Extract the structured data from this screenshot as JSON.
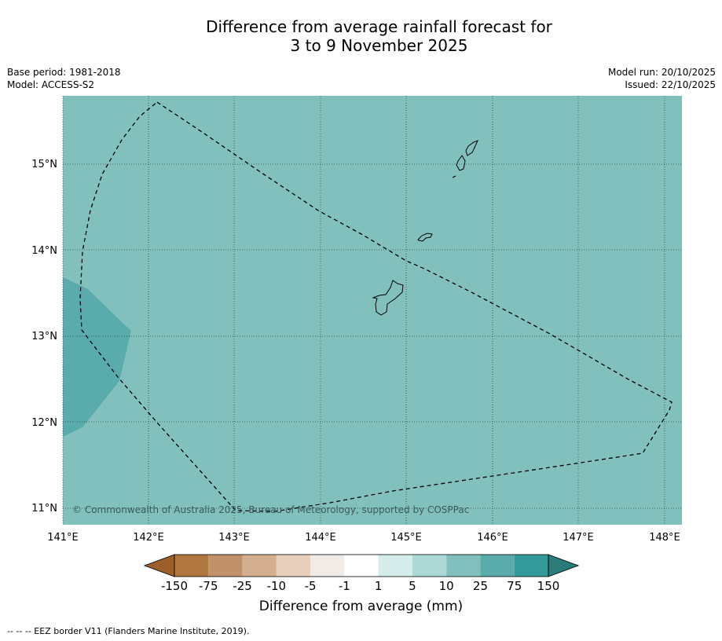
{
  "title": {
    "line1": "Difference from average rainfall forecast for",
    "line2": "3 to 9 November 2025"
  },
  "meta": {
    "base_period": "Base period: 1981-2018",
    "model": "Model: ACCESS-S2",
    "model_run": "Model run: 20/10/2025",
    "issued": "Issued: 22/10/2025"
  },
  "map": {
    "lon_labels": [
      "141°E",
      "142°E",
      "143°E",
      "144°E",
      "145°E",
      "146°E",
      "147°E",
      "148°E"
    ],
    "lat_labels": [
      "15°N",
      "14°N",
      "13°N",
      "12°N",
      "11°N"
    ],
    "copyright": "© Commonwealth of Australia 2025, Bureau of Meteorology, supported by COSPPac",
    "colors": {
      "background": "#82c0be",
      "wetter_patch": "#5aacac"
    },
    "features": [
      "eez-border",
      "guam",
      "rota",
      "tinian-saipan"
    ]
  },
  "legend": {
    "ticks": [
      "-150",
      "-75",
      "-25",
      "-10",
      "-5",
      "-1",
      "1",
      "5",
      "10",
      "25",
      "75",
      "150"
    ],
    "colors": [
      "#9c5f2a",
      "#b07840",
      "#c0916a",
      "#d4b090",
      "#e8d0bc",
      "#f0ebe7",
      "#ffffff",
      "#d4ecea",
      "#acd8d6",
      "#82c0be",
      "#5aacac",
      "#349a9a",
      "#2a7c7a"
    ],
    "title": "Difference from average (mm)"
  },
  "footnote": "--  --  -- EEZ border V11 (Flanders Marine Institute, 2019)."
}
